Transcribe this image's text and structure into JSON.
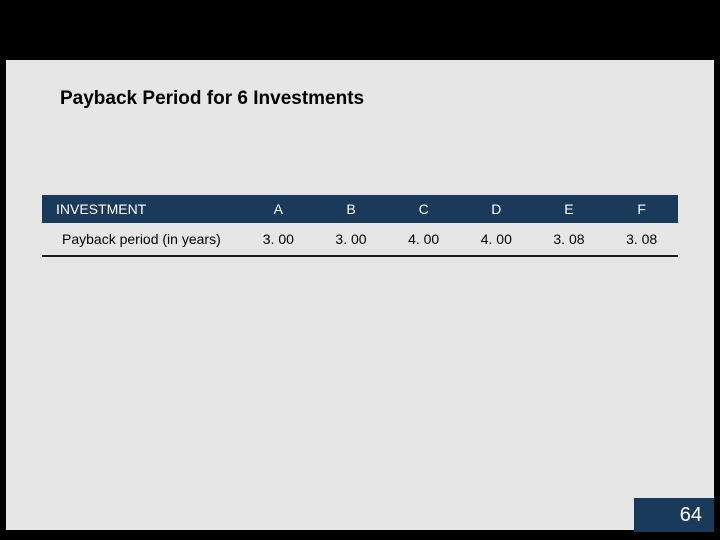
{
  "slide": {
    "title": "Payback Period for 6 Investments",
    "page_number": "64",
    "background_color": "#000000",
    "content_bg_color": "#e6e6e6",
    "accent_color": "#1a3a5c"
  },
  "table": {
    "type": "table",
    "header": {
      "row_label": "INVESTMENT",
      "columns": [
        "A",
        "B",
        "C",
        "D",
        "E",
        "F"
      ]
    },
    "rows": [
      {
        "label": "Payback period (in years)",
        "values": [
          "3. 00",
          "3. 00",
          "4. 00",
          "4. 00",
          "3. 08",
          "3. 08"
        ]
      }
    ],
    "header_bg": "#1a3a5c",
    "header_text_color": "#ffffff",
    "body_text_color": "#000000",
    "border_color": "#1a1a1a"
  }
}
